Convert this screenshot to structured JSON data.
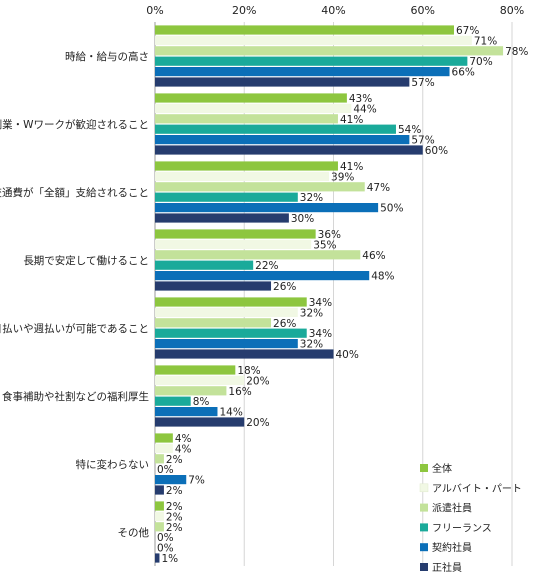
{
  "chart_data": {
    "type": "bar",
    "orientation": "horizontal",
    "grid": true,
    "legend_position": "bottom-right",
    "xlim": [
      0,
      80
    ],
    "xticks": [
      "0%",
      "20%",
      "40%",
      "60%",
      "80%"
    ],
    "xtick_values": [
      0,
      20,
      40,
      60,
      80
    ],
    "value_suffix": "%",
    "categories": [
      "時給・給与の高さ",
      "副業・Wワークが歓迎されること",
      "交通費が「全額」支給されること",
      "長期で安定して働けること",
      "日払いや週払いが可能であること",
      "食事補助や社割などの福利厚生",
      "特に変わらない",
      "その他"
    ],
    "series": [
      {
        "name": "全体",
        "color": "#8dc63f",
        "values": [
          67,
          43,
          41,
          36,
          34,
          18,
          4,
          2
        ]
      },
      {
        "name": "アルバイト・パート",
        "color": "#f1f8e4",
        "values": [
          71,
          44,
          39,
          35,
          32,
          20,
          4,
          2
        ]
      },
      {
        "name": "派遣社員",
        "color": "#c3e29a",
        "values": [
          78,
          41,
          47,
          46,
          26,
          16,
          2,
          2
        ]
      },
      {
        "name": "フリーランス",
        "color": "#1aaa9a",
        "values": [
          70,
          54,
          32,
          22,
          34,
          8,
          0,
          0
        ]
      },
      {
        "name": "契約社員",
        "color": "#0b6fb8",
        "values": [
          66,
          57,
          50,
          48,
          32,
          14,
          7,
          0
        ]
      },
      {
        "name": "正社員",
        "color": "#263c6e",
        "values": [
          57,
          60,
          30,
          26,
          40,
          20,
          2,
          1
        ]
      }
    ]
  }
}
